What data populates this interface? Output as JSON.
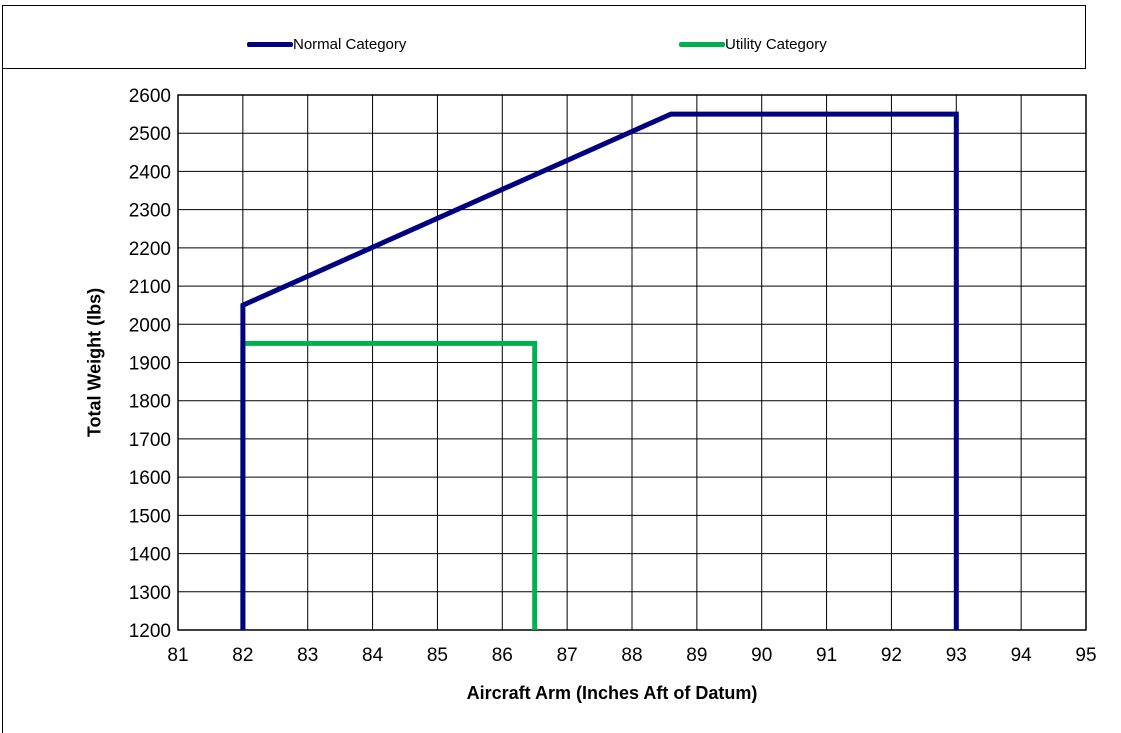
{
  "legend": {
    "items": [
      {
        "label": "Normal Category",
        "color": "#000080"
      },
      {
        "label": "Utility Category",
        "color": "#00B050"
      }
    ]
  },
  "chart_data": {
    "type": "line",
    "title": "",
    "xlabel": "Aircraft Arm (Inches Aft of Datum)",
    "ylabel": "Total Weight (lbs)",
    "xlim": [
      81,
      95
    ],
    "ylim": [
      1200,
      2600
    ],
    "x_ticks": [
      81,
      82,
      83,
      84,
      85,
      86,
      87,
      88,
      89,
      90,
      91,
      92,
      93,
      94,
      95
    ],
    "y_ticks": [
      1200,
      1300,
      1400,
      1500,
      1600,
      1700,
      1800,
      1900,
      2000,
      2100,
      2200,
      2300,
      2400,
      2500,
      2600
    ],
    "grid": true,
    "legend_position": "top",
    "series": [
      {
        "name": "Normal Category",
        "color": "#000080",
        "points": [
          [
            82,
            1200
          ],
          [
            82,
            2050
          ],
          [
            88.6,
            2550
          ],
          [
            93,
            2550
          ],
          [
            93,
            1200
          ]
        ]
      },
      {
        "name": "Utility Category",
        "color": "#00B050",
        "points": [
          [
            82,
            1200
          ],
          [
            82,
            1950
          ],
          [
            86.5,
            1950
          ],
          [
            86.5,
            1200
          ]
        ]
      }
    ]
  }
}
